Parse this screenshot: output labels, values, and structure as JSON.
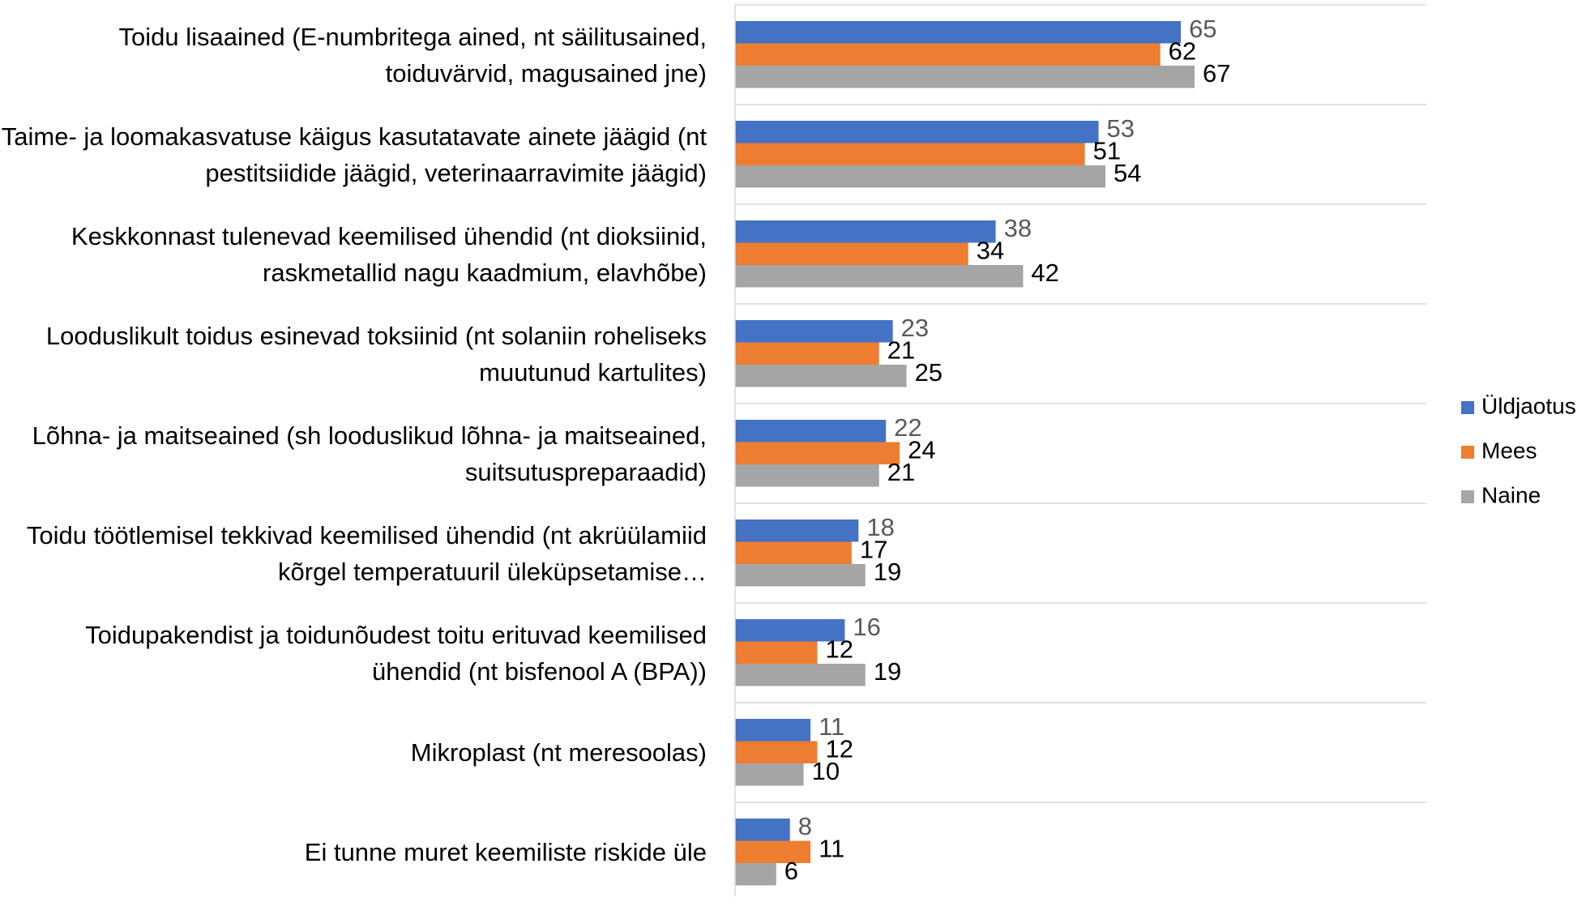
{
  "chart_data": {
    "type": "bar",
    "orientation": "horizontal",
    "categories": [
      "Toidu lisaained (E-numbritega ained, nt säilitusained, toiduvärvid, magusained jne)",
      "Taime- ja loomakasvatuse käigus kasutatavate ainete jäägid (nt pestitsiidide jäägid, veterinaarravimite jäägid)",
      "Keskkonnast tulenevad keemilised ühendid (nt dioksiinid, raskmetallid nagu kaadmium, elavhõbe)",
      "Looduslikult toidus esinevad toksiinid (nt solaniin roheliseks muutunud kartulites)",
      "Lõhna- ja maitseained (sh looduslikud lõhna- ja maitseained, suitsutuspreparaadid)",
      "Toidu töötlemisel tekkivad keemilised ühendid (nt akrüülamiid kõrgel temperatuuril üleküpsetamise…",
      "Toidupakendist ja toidunõudest toitu erituvad keemilised ühendid (nt bisfenool A (BPA))",
      "Mikroplast (nt meresoolas)",
      "Ei tunne muret keemiliste riskide üle"
    ],
    "series": [
      {
        "name": "Üldjaotus",
        "color": "#4472c4",
        "values": [
          65,
          53,
          38,
          23,
          22,
          18,
          16,
          11,
          8
        ]
      },
      {
        "name": "Mees",
        "color": "#ed7d31",
        "values": [
          62,
          51,
          34,
          21,
          24,
          17,
          12,
          12,
          11
        ]
      },
      {
        "name": "Naine",
        "color": "#a5a5a5",
        "values": [
          67,
          54,
          42,
          25,
          21,
          19,
          19,
          10,
          6
        ]
      }
    ],
    "legend": "right"
  }
}
